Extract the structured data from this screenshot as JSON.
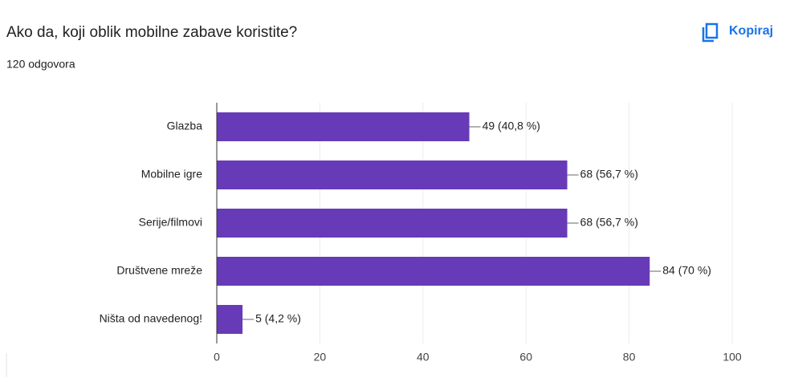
{
  "chart_data": {
    "type": "bar",
    "orientation": "horizontal",
    "title": "Ako da, koji oblik mobilne zabave koristite?",
    "subtitle": "120 odgovora",
    "action": "Kopiraj",
    "categories": [
      "Glazba",
      "Mobilne igre",
      "Serije/filmovi",
      "Društvene mreže",
      "Ništa od navedenog!"
    ],
    "values": [
      49,
      68,
      68,
      84,
      5
    ],
    "value_labels": [
      "49 (40,8 %)",
      "68 (56,7 %)",
      "68 (56,7 %)",
      "84 (70 %)",
      "5 (4,2 %)"
    ],
    "color": "#673ab7",
    "xlim": [
      0,
      100
    ],
    "xticks": [
      0,
      20,
      40,
      60,
      80,
      100
    ],
    "grid": true
  }
}
